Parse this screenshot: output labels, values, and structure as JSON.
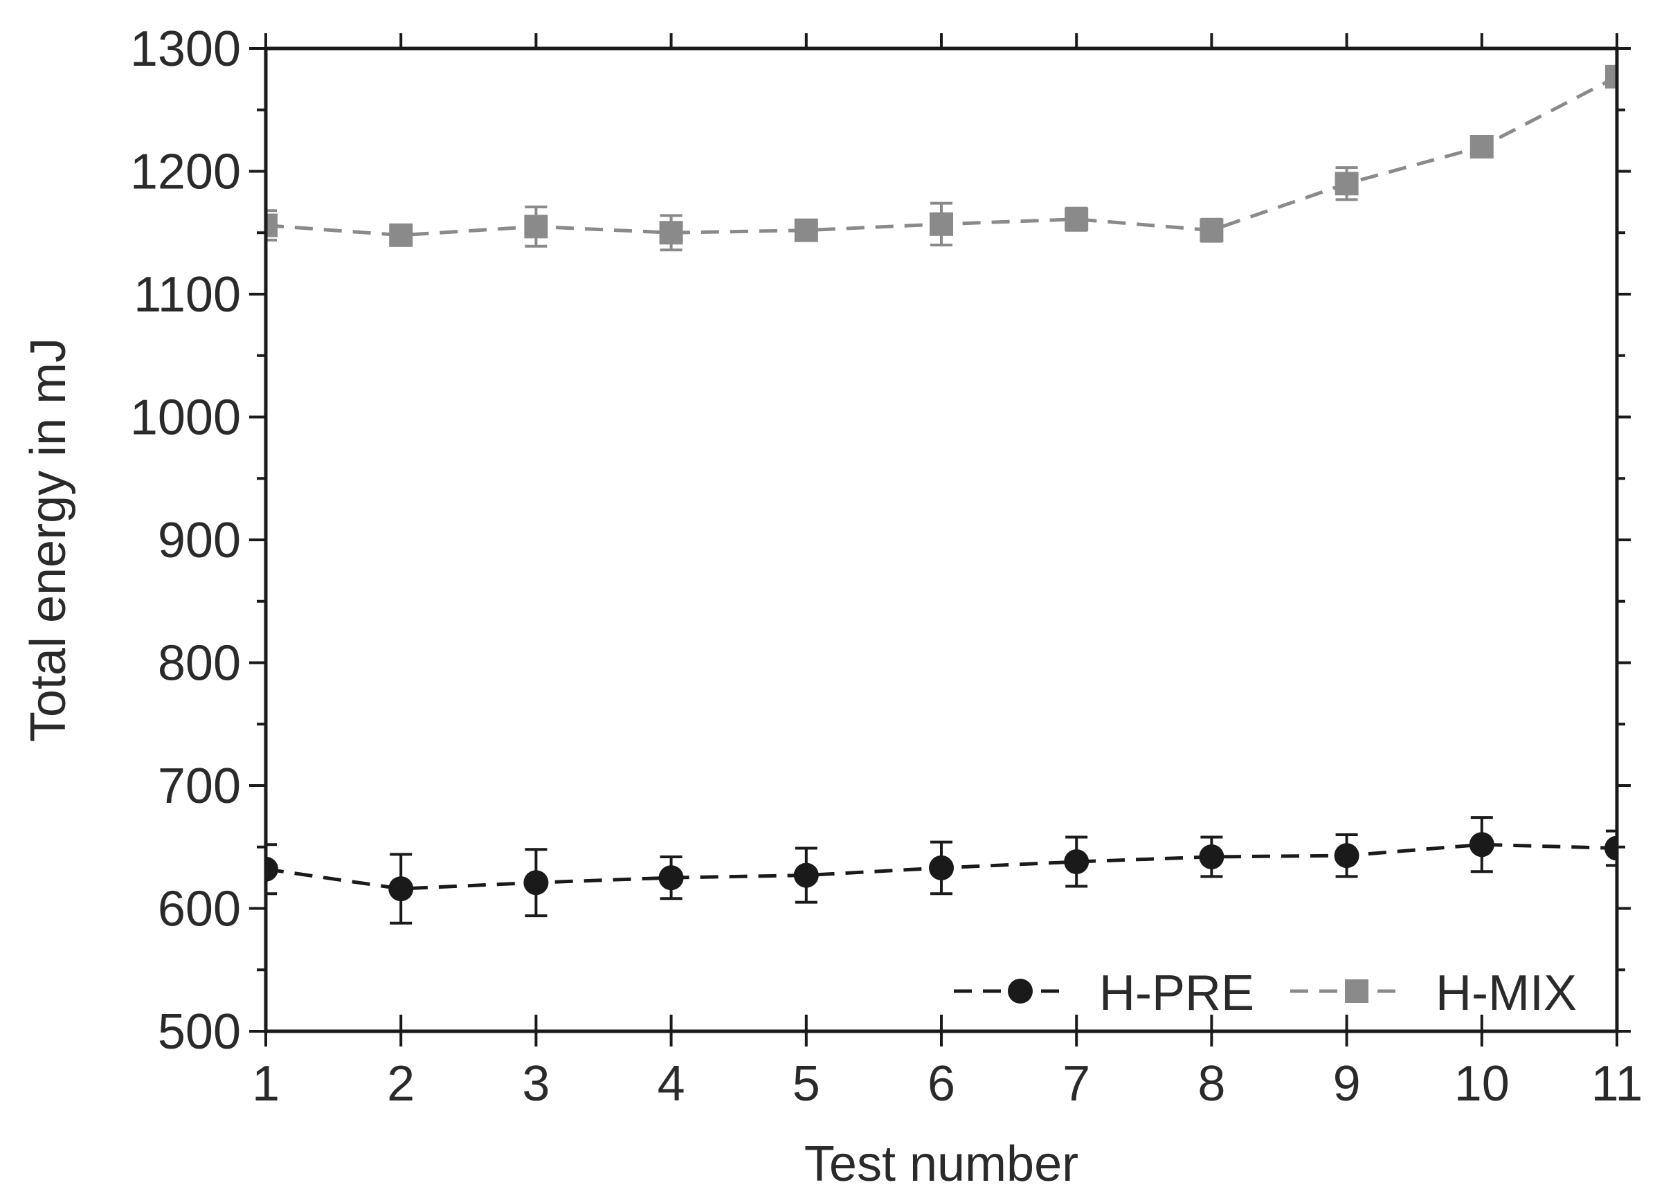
{
  "chart_data": {
    "type": "line",
    "xlabel": "Test number",
    "ylabel": "Total energy in mJ",
    "xlim": [
      1,
      11
    ],
    "ylim": [
      500,
      1300
    ],
    "x_ticks": [
      "1",
      "2",
      "3",
      "4",
      "5",
      "6",
      "7",
      "8",
      "9",
      "10",
      "11"
    ],
    "y_ticks": [
      "500",
      "600",
      "700",
      "800",
      "900",
      "1000",
      "1100",
      "1200",
      "1300"
    ],
    "grid": false,
    "legend_position": "bottom-right",
    "x": [
      1,
      2,
      3,
      4,
      5,
      6,
      7,
      8,
      9,
      10,
      11
    ],
    "series": [
      {
        "name": "H-PRE",
        "color": "#1a1a1a",
        "marker": "circle",
        "values": [
          632,
          616,
          621,
          625,
          627,
          633,
          638,
          642,
          643,
          652,
          649
        ],
        "errors": [
          20,
          28,
          27,
          17,
          22,
          21,
          20,
          16,
          17,
          22,
          14
        ]
      },
      {
        "name": "H-MIX",
        "color": "#8a8a8a",
        "marker": "square",
        "values": [
          1156,
          1148,
          1155,
          1150,
          1152,
          1157,
          1161,
          1152,
          1190,
          1220,
          1277
        ],
        "errors": [
          12,
          8,
          16,
          14,
          8,
          17,
          9,
          9,
          13,
          8,
          8
        ]
      }
    ]
  }
}
